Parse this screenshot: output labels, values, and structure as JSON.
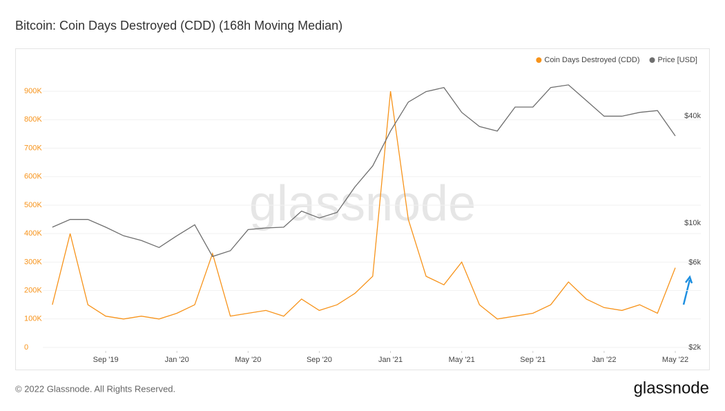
{
  "chart_data": {
    "type": "line",
    "title": "Bitcoin: Coin Days Destroyed (CDD) (168h Moving Median)",
    "watermark": "glassnode",
    "footer": "© 2022 Glassnode. All Rights Reserved.",
    "logo": "glassnode",
    "x": [
      "2019-06",
      "2019-07",
      "2019-08",
      "2019-09",
      "2019-10",
      "2019-11",
      "2019-12",
      "2020-01",
      "2020-02",
      "2020-03",
      "2020-04",
      "2020-05",
      "2020-06",
      "2020-07",
      "2020-08",
      "2020-09",
      "2020-10",
      "2020-11",
      "2020-12",
      "2021-01",
      "2021-02",
      "2021-03",
      "2021-04",
      "2021-05",
      "2021-06",
      "2021-07",
      "2021-08",
      "2021-09",
      "2021-10",
      "2021-11",
      "2021-12",
      "2022-01",
      "2022-02",
      "2022-03",
      "2022-04",
      "2022-05"
    ],
    "xlim": [
      "2019-05",
      "2022-05"
    ],
    "xticks": [
      {
        "value": "2019-09",
        "label": "Sep '19"
      },
      {
        "value": "2020-01",
        "label": "Jan '20"
      },
      {
        "value": "2020-05",
        "label": "May '20"
      },
      {
        "value": "2020-09",
        "label": "Sep '20"
      },
      {
        "value": "2021-01",
        "label": "Jan '21"
      },
      {
        "value": "2021-05",
        "label": "May '21"
      },
      {
        "value": "2021-09",
        "label": "Sep '21"
      },
      {
        "value": "2022-01",
        "label": "Jan '22"
      },
      {
        "value": "2022-05",
        "label": "May '22"
      }
    ],
    "ylim": [
      0,
      990000
    ],
    "yticks": [
      0,
      {
        "value": 100000,
        "label": "100K"
      },
      {
        "value": 200000,
        "label": "200K"
      },
      {
        "value": 300000,
        "label": "300K"
      },
      {
        "value": 400000,
        "label": "400K"
      },
      {
        "value": 500000,
        "label": "500K"
      },
      {
        "value": 600000,
        "label": "600K"
      },
      {
        "value": 700000,
        "label": "700K"
      },
      {
        "value": 800000,
        "label": "800K"
      },
      {
        "value": 900000,
        "label": "900K"
      }
    ],
    "y2lim": [
      2000,
      77000
    ],
    "y2scale": "log",
    "y2ticks": [
      {
        "value": 2000,
        "label": "$2k"
      },
      {
        "value": 6000,
        "label": "$6k"
      },
      {
        "value": 10000,
        "label": "$10k"
      },
      {
        "value": 40000,
        "label": "$40k"
      }
    ],
    "grid": true,
    "legend": "top-right",
    "series": [
      {
        "name": "Coin Days Destroyed (CDD)",
        "color": "#f7931a",
        "axis": "y",
        "values": [
          150000,
          400000,
          150000,
          110000,
          100000,
          110000,
          100000,
          120000,
          150000,
          330000,
          110000,
          120000,
          130000,
          110000,
          170000,
          130000,
          150000,
          190000,
          250000,
          900000,
          450000,
          250000,
          220000,
          300000,
          150000,
          100000,
          110000,
          120000,
          150000,
          230000,
          170000,
          140000,
          130000,
          150000,
          120000,
          280000
        ]
      },
      {
        "name": "Price [USD]",
        "color": "#6e6e6e",
        "axis": "y2",
        "values": [
          9500,
          10500,
          10500,
          9500,
          8500,
          8000,
          7300,
          8500,
          9800,
          6500,
          7000,
          9200,
          9400,
          9500,
          11700,
          10700,
          11500,
          16000,
          21000,
          33000,
          48000,
          55000,
          58000,
          42000,
          35000,
          33000,
          45000,
          45000,
          58000,
          60000,
          49000,
          40000,
          40000,
          42000,
          43000,
          31000
        ]
      }
    ]
  }
}
